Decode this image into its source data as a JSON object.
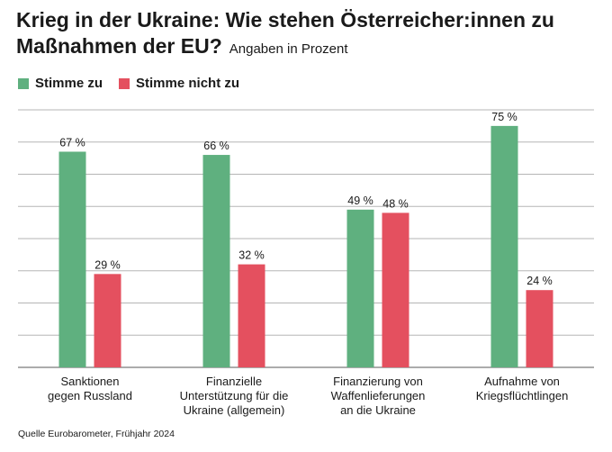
{
  "title": "Krieg in der Ukraine: Wie stehen Österreicher:innen zu Maßnahmen der EU?",
  "subtitle": "Angaben in Prozent",
  "source": "Quelle Eurobarometer, Frühjahr 2024",
  "colors": {
    "agree": "#5fb07f",
    "disagree": "#e4505f",
    "grid": "#b5b5b5",
    "text": "#1a1a1a"
  },
  "chart_data": {
    "type": "bar",
    "title": "Krieg in der Ukraine: Wie stehen Österreicher:innen zu Maßnahmen der EU?",
    "subtitle": "Angaben in Prozent",
    "categories": [
      [
        "Sanktionen",
        "gegen Russland"
      ],
      [
        "Finanzielle",
        "Unterstützung für die",
        "Ukraine (allgemein)"
      ],
      [
        "Finanzierung von",
        "Waffenlieferungen",
        "an die Ukraine"
      ],
      [
        "Aufnahme von",
        "Kriegsflüchtlingen"
      ]
    ],
    "series": [
      {
        "name": "Stimme zu",
        "values": [
          67,
          66,
          49,
          75
        ],
        "labels": [
          "67 %",
          "66 %",
          "49 %",
          "75 %"
        ]
      },
      {
        "name": "Stimme nicht zu",
        "values": [
          29,
          32,
          48,
          24
        ],
        "labels": [
          "29 %",
          "32 %",
          "48 %",
          "24 %"
        ]
      }
    ],
    "ylim": [
      0,
      80
    ],
    "grid": true,
    "legend": "top-left"
  }
}
